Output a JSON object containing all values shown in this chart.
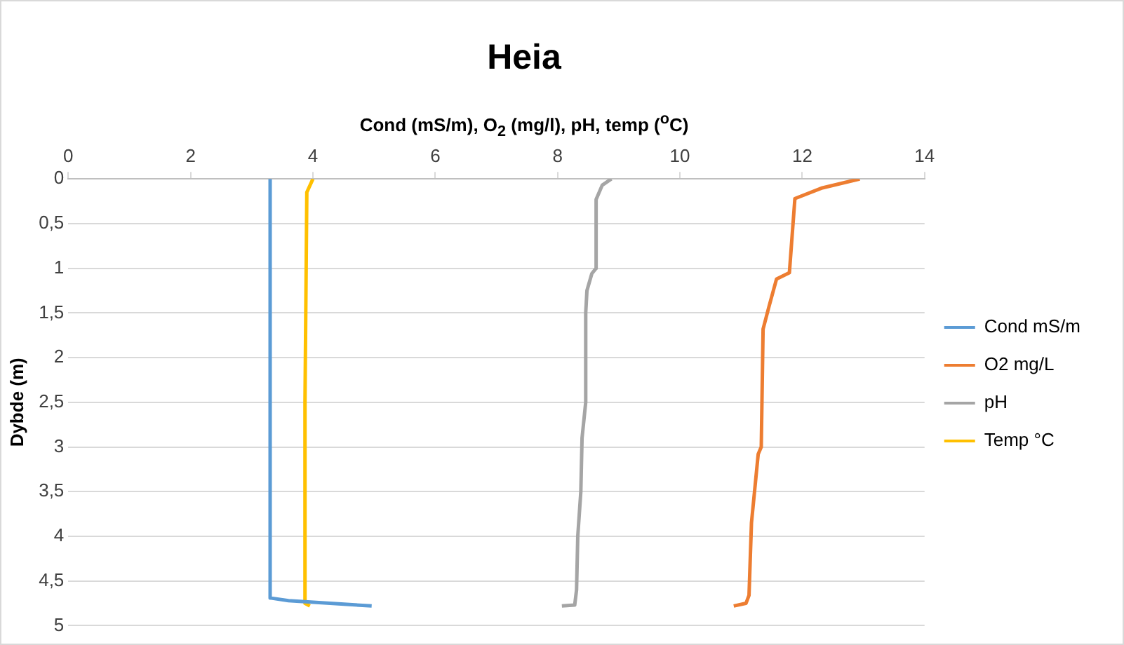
{
  "chart_data": {
    "type": "line",
    "title": "Heia",
    "xlabel": "Cond (mS/m), O$_{2}$ (mg/l), pH, temp ($^{o}$C)",
    "ylabel": "Dybde (m)",
    "xlim": [
      0,
      14
    ],
    "xticks": [
      0,
      2,
      4,
      6,
      8,
      10,
      12,
      14
    ],
    "ylim": [
      5,
      0
    ],
    "yticks": [
      {
        "value": 0,
        "label": "0"
      },
      {
        "value": 0.5,
        "label": "0,5"
      },
      {
        "value": 1,
        "label": "1"
      },
      {
        "value": 1.5,
        "label": "1,5"
      },
      {
        "value": 2,
        "label": "2"
      },
      {
        "value": 2.5,
        "label": "2,5"
      },
      {
        "value": 3,
        "label": "3"
      },
      {
        "value": 3.5,
        "label": "3,5"
      },
      {
        "value": 4,
        "label": "4"
      },
      {
        "value": 4.5,
        "label": "4,5"
      },
      {
        "value": 5,
        "label": "5"
      }
    ],
    "grid": "y",
    "legend": "right",
    "marker": "none",
    "line_style": "solid",
    "series": [
      {
        "name": "Cond mS/m",
        "color": "#5b9bd5",
        "x": [
          3.3,
          3.3,
          3.3,
          3.6,
          4.96
        ],
        "values": [
          0,
          2.5,
          4.69,
          4.72,
          4.78
        ]
      },
      {
        "name": "O2 mg/L",
        "color": "#ed7d31",
        "x": [
          12.94,
          12.33,
          11.88,
          11.79,
          11.58,
          11.46,
          11.36,
          11.33,
          11.28,
          11.17,
          11.13,
          11.08,
          10.88
        ],
        "values": [
          0,
          0.1,
          0.22,
          1.05,
          1.12,
          1.42,
          1.68,
          3.0,
          3.08,
          3.85,
          4.66,
          4.75,
          4.78
        ]
      },
      {
        "name": "pH",
        "color": "#a5a5a5",
        "x": [
          8.88,
          8.73,
          8.63,
          8.63,
          8.56,
          8.48,
          8.46,
          8.46,
          8.4,
          8.38,
          8.33,
          8.31,
          8.28,
          8.07
        ],
        "values": [
          0,
          0.07,
          0.23,
          1.0,
          1.06,
          1.25,
          1.5,
          2.5,
          2.9,
          3.5,
          4.0,
          4.6,
          4.77,
          4.78
        ]
      },
      {
        "name": "Temp °C",
        "color": "#ffc000",
        "x": [
          4.0,
          3.9,
          3.87,
          3.87,
          3.95
        ],
        "values": [
          0,
          0.15,
          2.5,
          4.75,
          4.78
        ]
      }
    ]
  }
}
